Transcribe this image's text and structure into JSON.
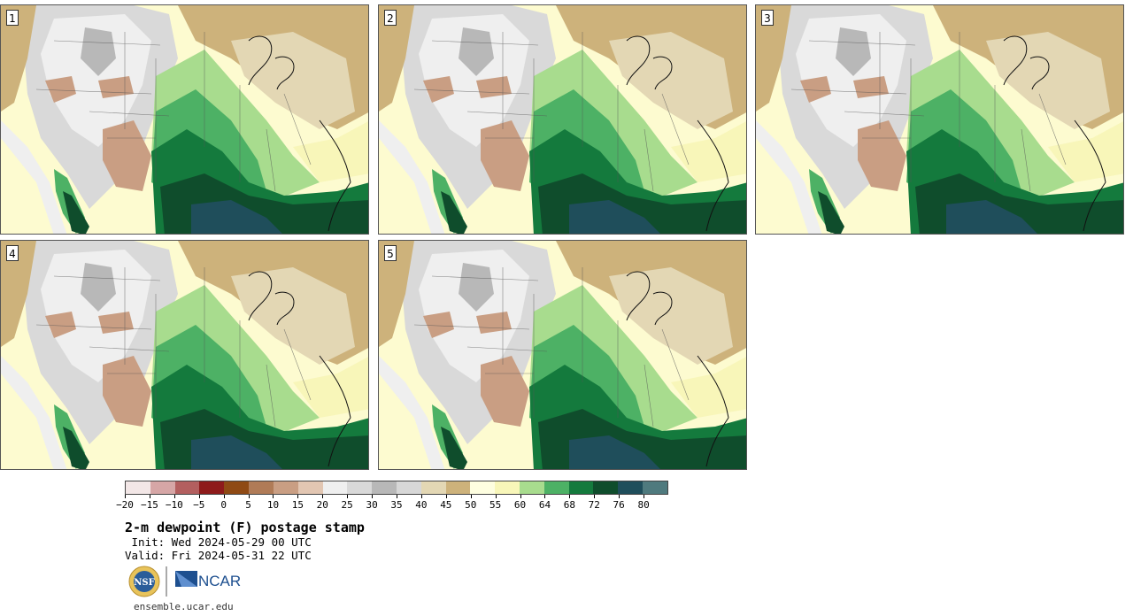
{
  "panels": [
    {
      "label": "1"
    },
    {
      "label": "2"
    },
    {
      "label": "3"
    },
    {
      "label": "4"
    },
    {
      "label": "5"
    }
  ],
  "colorbar": {
    "colors": [
      "#f3e7e7",
      "#d6a6a6",
      "#b35f5f",
      "#8e1b1b",
      "#8f4a14",
      "#b07b57",
      "#c99e83",
      "#e2c6b2",
      "#efefef",
      "#d9d9d9",
      "#b8b8b8",
      "#d7d7d7",
      "#e3d7b4",
      "#cdb27b",
      "#fefee0",
      "#f8f6b9",
      "#a8dc8e",
      "#4db165",
      "#147a3d",
      "#0f4d2c",
      "#1f4e5b",
      "#4f7a7e"
    ],
    "tick_labels": [
      "-20",
      "-15",
      "-10",
      "-5",
      "0",
      "5",
      "10",
      "15",
      "20",
      "25",
      "30",
      "35",
      "40",
      "45",
      "50",
      "55",
      "60",
      "64",
      "68",
      "72",
      "76",
      "80"
    ]
  },
  "title": "2-m dewpoint (F) postage stamp",
  "init": " Init: Wed 2024-05-29 00 UTC",
  "valid": "Valid: Fri 2024-05-31 22 UTC",
  "logos": {
    "nsf": "NSF",
    "ncar": "NCAR"
  },
  "site": "ensemble.ucar.edu"
}
